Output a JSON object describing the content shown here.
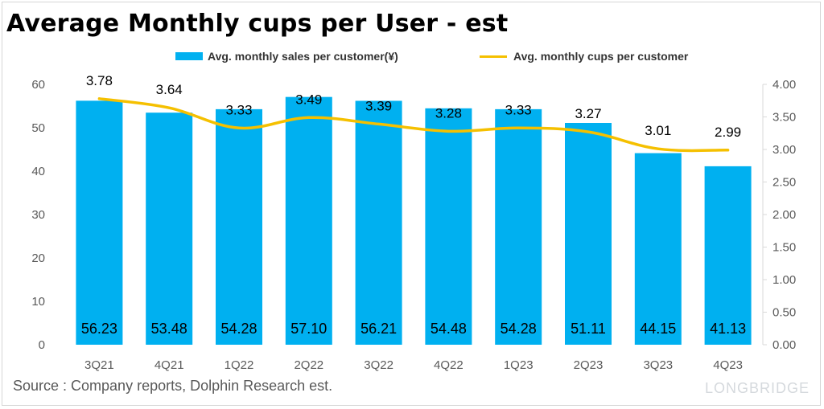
{
  "title": "Average Monthly cups per User - est",
  "source": "Source : Company reports, Dolphin Research est.",
  "watermark": "LONGBRIDGE",
  "colors": {
    "bar": "#00b0f0",
    "line": "#f5c000",
    "axis_text": "#595959",
    "gridline": "#d9d9d9"
  },
  "legend": {
    "bar_label": "Avg. monthly sales per customer(¥)",
    "line_label": "Avg. monthly cups per customer"
  },
  "chart_data": {
    "type": "bar",
    "categories": [
      "3Q21",
      "4Q21",
      "1Q22",
      "2Q22",
      "3Q22",
      "4Q22",
      "1Q23",
      "2Q23",
      "3Q23",
      "4Q23"
    ],
    "series": [
      {
        "name": "Avg. monthly sales per customer(¥)",
        "type": "bar",
        "axis": "left",
        "values": [
          56.23,
          53.48,
          54.28,
          57.1,
          56.21,
          54.48,
          54.28,
          51.11,
          44.15,
          41.13
        ],
        "labels": [
          "56.23",
          "53.48",
          "54.28",
          "57.10",
          "56.21",
          "54.48",
          "54.28",
          "51.11",
          "44.15",
          "41.13"
        ]
      },
      {
        "name": "Avg. monthly cups per customer",
        "type": "line",
        "axis": "right",
        "values": [
          3.78,
          3.64,
          3.33,
          3.49,
          3.39,
          3.28,
          3.33,
          3.27,
          3.01,
          2.99
        ],
        "labels": [
          "3.78",
          "3.64",
          "3.33",
          "3.49",
          "3.39",
          "3.28",
          "3.33",
          "3.27",
          "3.01",
          "2.99"
        ]
      }
    ],
    "y_left": {
      "ylim": [
        0,
        60
      ],
      "ticks": [
        "0",
        "10",
        "20",
        "30",
        "40",
        "50",
        "60"
      ]
    },
    "y_right": {
      "ylim": [
        0,
        4
      ],
      "ticks": [
        "0.00",
        "0.50",
        "1.00",
        "1.50",
        "2.00",
        "2.50",
        "3.00",
        "3.50",
        "4.00"
      ]
    },
    "grid": false,
    "legend_position": "top"
  }
}
